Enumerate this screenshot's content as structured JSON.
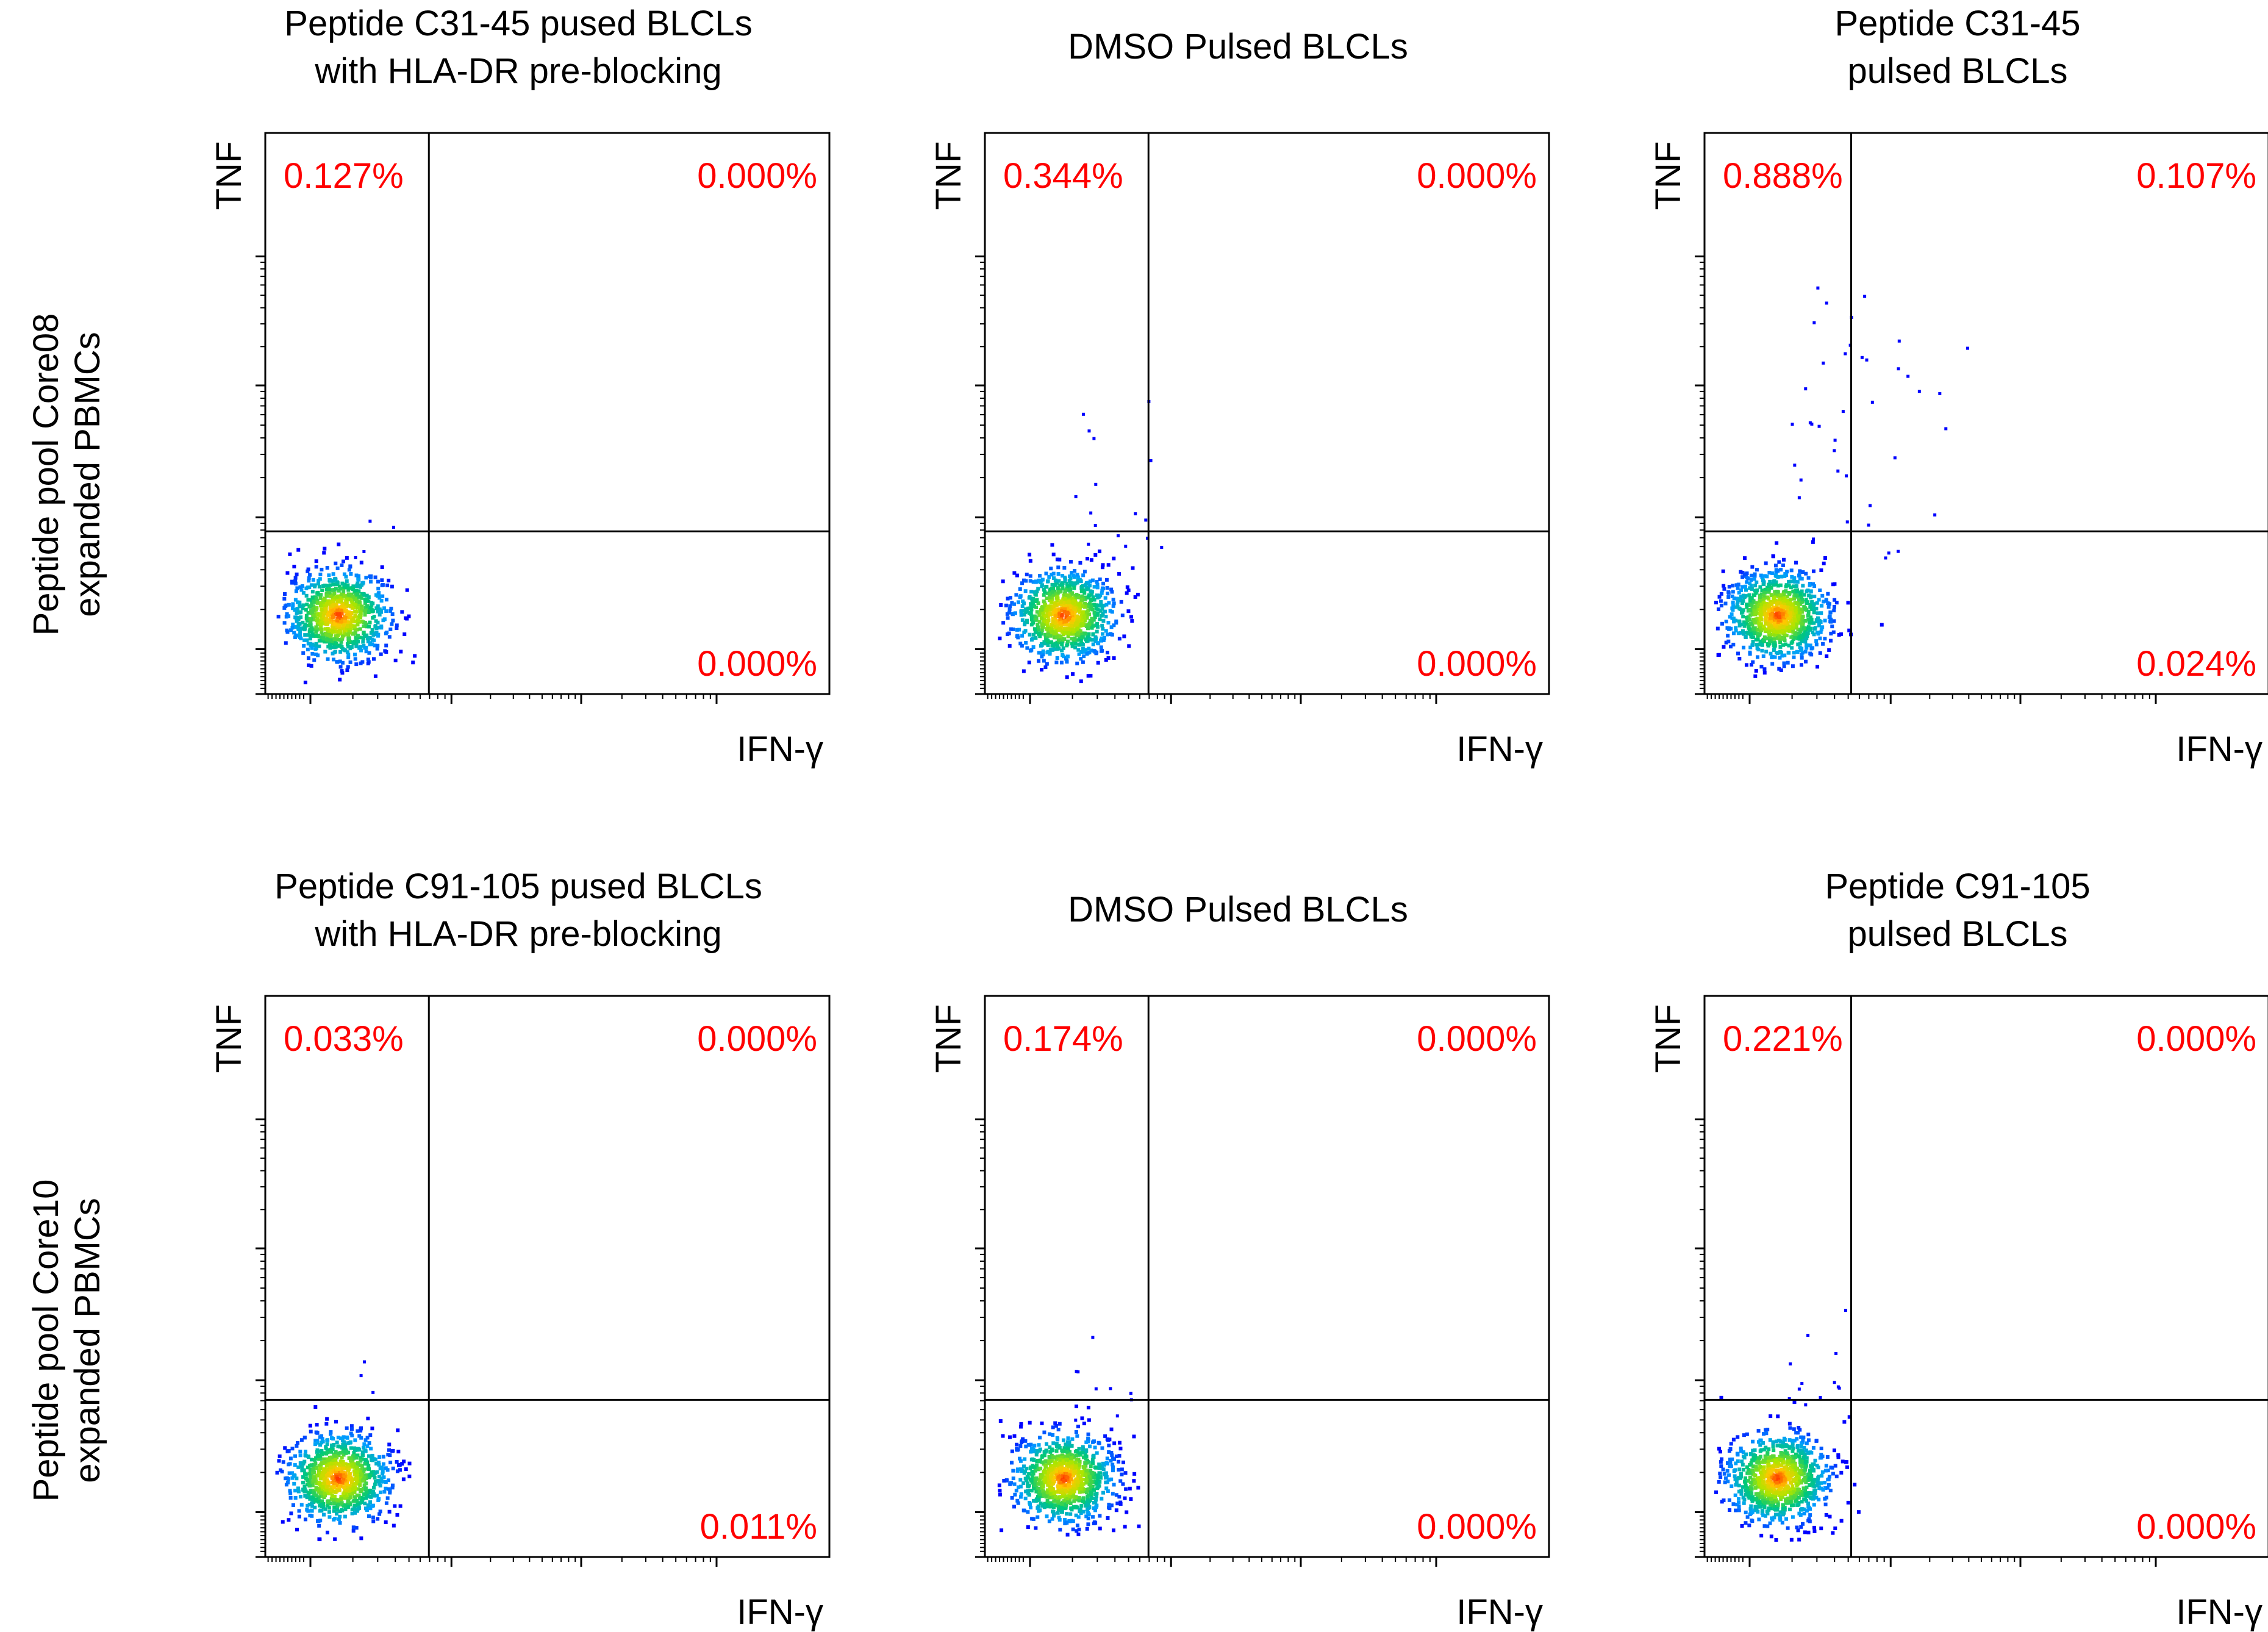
{
  "figure": {
    "rows": [
      {
        "label_lines": [
          "Peptide pool Core08",
          "expanded PBMCs"
        ]
      },
      {
        "label_lines": [
          "Peptide pool Core10",
          "expanded PBMCs"
        ]
      }
    ],
    "colors": {
      "quadrant_text": "#ff0000",
      "axes": "#000000"
    }
  },
  "chart_data": [
    {
      "type": "scatter",
      "row": 1,
      "col": 1,
      "title_lines": [
        "Peptide C31-45 pused BLCLs",
        "with HLA-DR pre-blocking"
      ],
      "xlabel": "IFN-γ",
      "ylabel": "TNF",
      "quadrants": {
        "upper_left": "0.127%",
        "upper_right": "0.000%",
        "lower_right": "0.000%"
      },
      "gate": {
        "x": 0.29,
        "y": 0.29
      },
      "population": {
        "cx": 0.13,
        "cy": 0.14,
        "n": 900,
        "spread_x": 0.045,
        "spread_y": 0.04,
        "outliers": 4,
        "outliers_spread": 0.1
      }
    },
    {
      "type": "scatter",
      "row": 1,
      "col": 2,
      "title_lines": [
        "DMSO Pulsed BLCLs"
      ],
      "xlabel": "IFN-γ",
      "ylabel": "TNF",
      "quadrants": {
        "upper_left": "0.344%",
        "upper_right": "0.000%",
        "lower_right": "0.000%"
      },
      "gate": {
        "x": 0.29,
        "y": 0.29
      },
      "population": {
        "cx": 0.14,
        "cy": 0.14,
        "n": 950,
        "spread_x": 0.045,
        "spread_y": 0.04,
        "outliers": 16,
        "outliers_spread": 0.22
      }
    },
    {
      "type": "scatter",
      "row": 1,
      "col": 3,
      "title_lines": [
        "Peptide C31-45",
        "pulsed BLCLs"
      ],
      "xlabel": "IFN-γ",
      "ylabel": "TNF",
      "quadrants": {
        "upper_left": "0.888%",
        "upper_right": "0.107%",
        "lower_right": "0.024%"
      },
      "gate": {
        "x": 0.26,
        "y": 0.29
      },
      "population": {
        "cx": 0.13,
        "cy": 0.14,
        "n": 1000,
        "spread_x": 0.045,
        "spread_y": 0.04,
        "outliers": 40,
        "outliers_spread": 0.35
      }
    },
    {
      "type": "scatter",
      "row": 2,
      "col": 1,
      "title_lines": [
        "Peptide C91-105 pused BLCLs",
        "with HLA-DR pre-blocking"
      ],
      "xlabel": "IFN-γ",
      "ylabel": "TNF",
      "quadrants": {
        "upper_left": "0.033%",
        "upper_right": "0.000%",
        "lower_right": "0.011%"
      },
      "gate": {
        "x": 0.29,
        "y": 0.28
      },
      "population": {
        "cx": 0.13,
        "cy": 0.14,
        "n": 900,
        "spread_x": 0.045,
        "spread_y": 0.04,
        "outliers": 3,
        "outliers_spread": 0.08
      }
    },
    {
      "type": "scatter",
      "row": 2,
      "col": 2,
      "title_lines": [
        "DMSO Pulsed BLCLs"
      ],
      "xlabel": "IFN-γ",
      "ylabel": "TNF",
      "quadrants": {
        "upper_left": "0.174%",
        "upper_right": "0.000%",
        "lower_right": "0.000%"
      },
      "gate": {
        "x": 0.29,
        "y": 0.28
      },
      "population": {
        "cx": 0.14,
        "cy": 0.14,
        "n": 950,
        "spread_x": 0.045,
        "spread_y": 0.04,
        "outliers": 9,
        "outliers_spread": 0.15
      }
    },
    {
      "type": "scatter",
      "row": 2,
      "col": 3,
      "title_lines": [
        "Peptide C91-105",
        "pulsed BLCLs"
      ],
      "xlabel": "IFN-γ",
      "ylabel": "TNF",
      "quadrants": {
        "upper_left": "0.221%",
        "upper_right": "0.000%",
        "lower_right": "0.000%"
      },
      "gate": {
        "x": 0.26,
        "y": 0.28
      },
      "population": {
        "cx": 0.13,
        "cy": 0.14,
        "n": 950,
        "spread_x": 0.045,
        "spread_y": 0.04,
        "outliers": 12,
        "outliers_spread": 0.16
      }
    }
  ]
}
